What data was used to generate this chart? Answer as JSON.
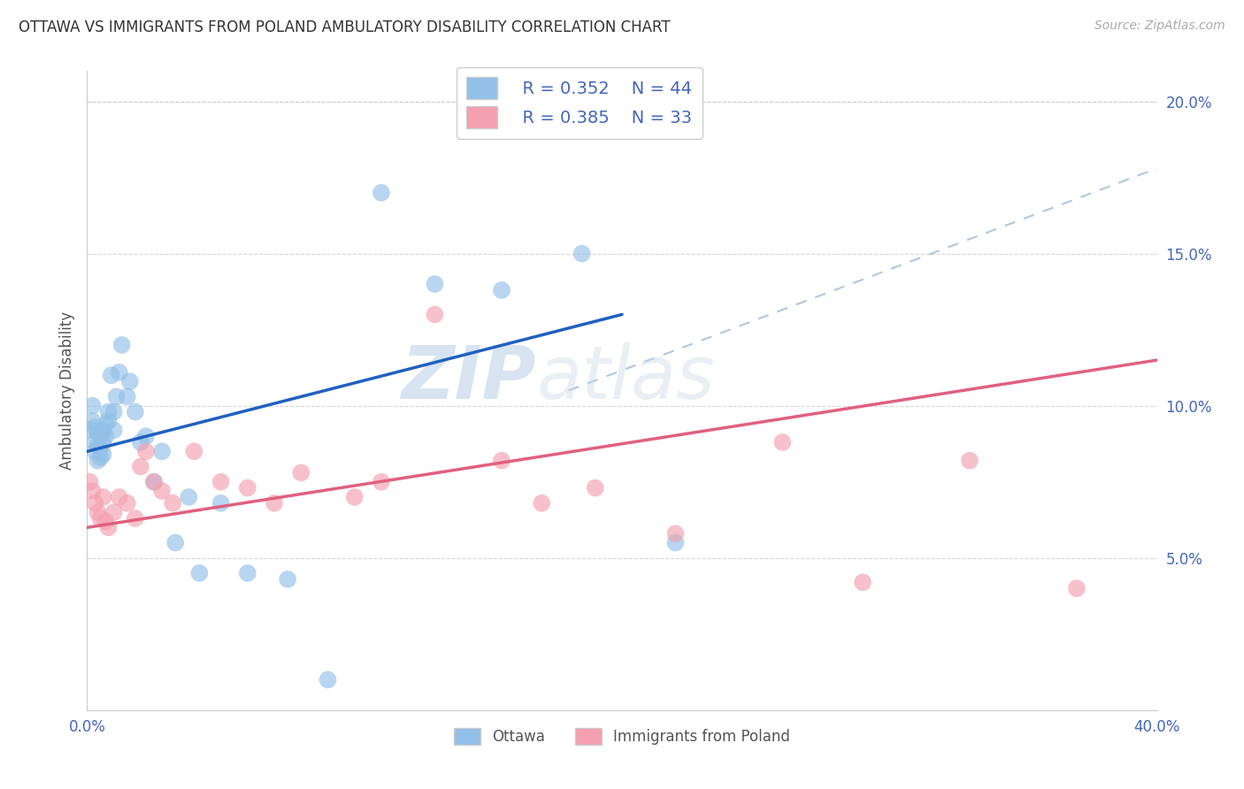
{
  "title": "OTTAWA VS IMMIGRANTS FROM POLAND AMBULATORY DISABILITY CORRELATION CHART",
  "source": "Source: ZipAtlas.com",
  "ylabel": "Ambulatory Disability",
  "xlim": [
    0.0,
    0.4
  ],
  "ylim": [
    0.0,
    0.21
  ],
  "y_ticks_right": [
    0.05,
    0.1,
    0.15,
    0.2
  ],
  "y_tick_labels_right": [
    "5.0%",
    "10.0%",
    "15.0%",
    "20.0%"
  ],
  "legend_r1": "R = 0.352",
  "legend_n1": "N = 44",
  "legend_r2": "R = 0.385",
  "legend_n2": "N = 33",
  "ottawa_color": "#92c0e8",
  "poland_color": "#f4a0b0",
  "trendline_ottawa_color": "#2060c0",
  "trendline_poland_color": "#e06080",
  "dashed_line_color": "#b0c8e0",
  "background_color": "#ffffff",
  "grid_color": "#cccccc",
  "axis_label_color": "#4466bb",
  "title_color": "#333333",
  "watermark_zip": "ZIP",
  "watermark_atlas": "atlas",
  "ottawa_x": [
    0.001,
    0.002,
    0.002,
    0.003,
    0.003,
    0.003,
    0.004,
    0.004,
    0.004,
    0.005,
    0.005,
    0.005,
    0.006,
    0.006,
    0.006,
    0.007,
    0.007,
    0.008,
    0.008,
    0.009,
    0.01,
    0.01,
    0.011,
    0.012,
    0.013,
    0.015,
    0.016,
    0.018,
    0.02,
    0.022,
    0.025,
    0.028,
    0.033,
    0.038,
    0.042,
    0.05,
    0.06,
    0.075,
    0.09,
    0.11,
    0.13,
    0.155,
    0.185,
    0.22
  ],
  "ottawa_y": [
    0.092,
    0.095,
    0.1,
    0.085,
    0.088,
    0.093,
    0.082,
    0.087,
    0.091,
    0.083,
    0.086,
    0.09,
    0.084,
    0.088,
    0.092,
    0.09,
    0.094,
    0.095,
    0.098,
    0.11,
    0.098,
    0.092,
    0.103,
    0.111,
    0.12,
    0.103,
    0.108,
    0.098,
    0.088,
    0.09,
    0.075,
    0.085,
    0.055,
    0.07,
    0.045,
    0.068,
    0.045,
    0.043,
    0.01,
    0.17,
    0.14,
    0.138,
    0.15,
    0.055
  ],
  "poland_x": [
    0.001,
    0.002,
    0.003,
    0.004,
    0.005,
    0.006,
    0.007,
    0.008,
    0.01,
    0.012,
    0.015,
    0.018,
    0.02,
    0.022,
    0.025,
    0.028,
    0.032,
    0.04,
    0.05,
    0.06,
    0.07,
    0.08,
    0.1,
    0.11,
    0.13,
    0.155,
    0.17,
    0.19,
    0.22,
    0.26,
    0.29,
    0.33,
    0.37
  ],
  "poland_y": [
    0.075,
    0.072,
    0.068,
    0.065,
    0.063,
    0.07,
    0.062,
    0.06,
    0.065,
    0.07,
    0.068,
    0.063,
    0.08,
    0.085,
    0.075,
    0.072,
    0.068,
    0.085,
    0.075,
    0.073,
    0.068,
    0.078,
    0.07,
    0.075,
    0.13,
    0.082,
    0.068,
    0.073,
    0.058,
    0.088,
    0.042,
    0.082,
    0.04
  ],
  "blue_trendline_x": [
    0.0,
    0.2
  ],
  "blue_trendline_y": [
    0.085,
    0.13
  ],
  "pink_trendline_x": [
    0.0,
    0.4
  ],
  "pink_trendline_y": [
    0.06,
    0.115
  ],
  "dashed_trendline_x": [
    0.18,
    0.4
  ],
  "dashed_trendline_y": [
    0.105,
    0.178
  ]
}
